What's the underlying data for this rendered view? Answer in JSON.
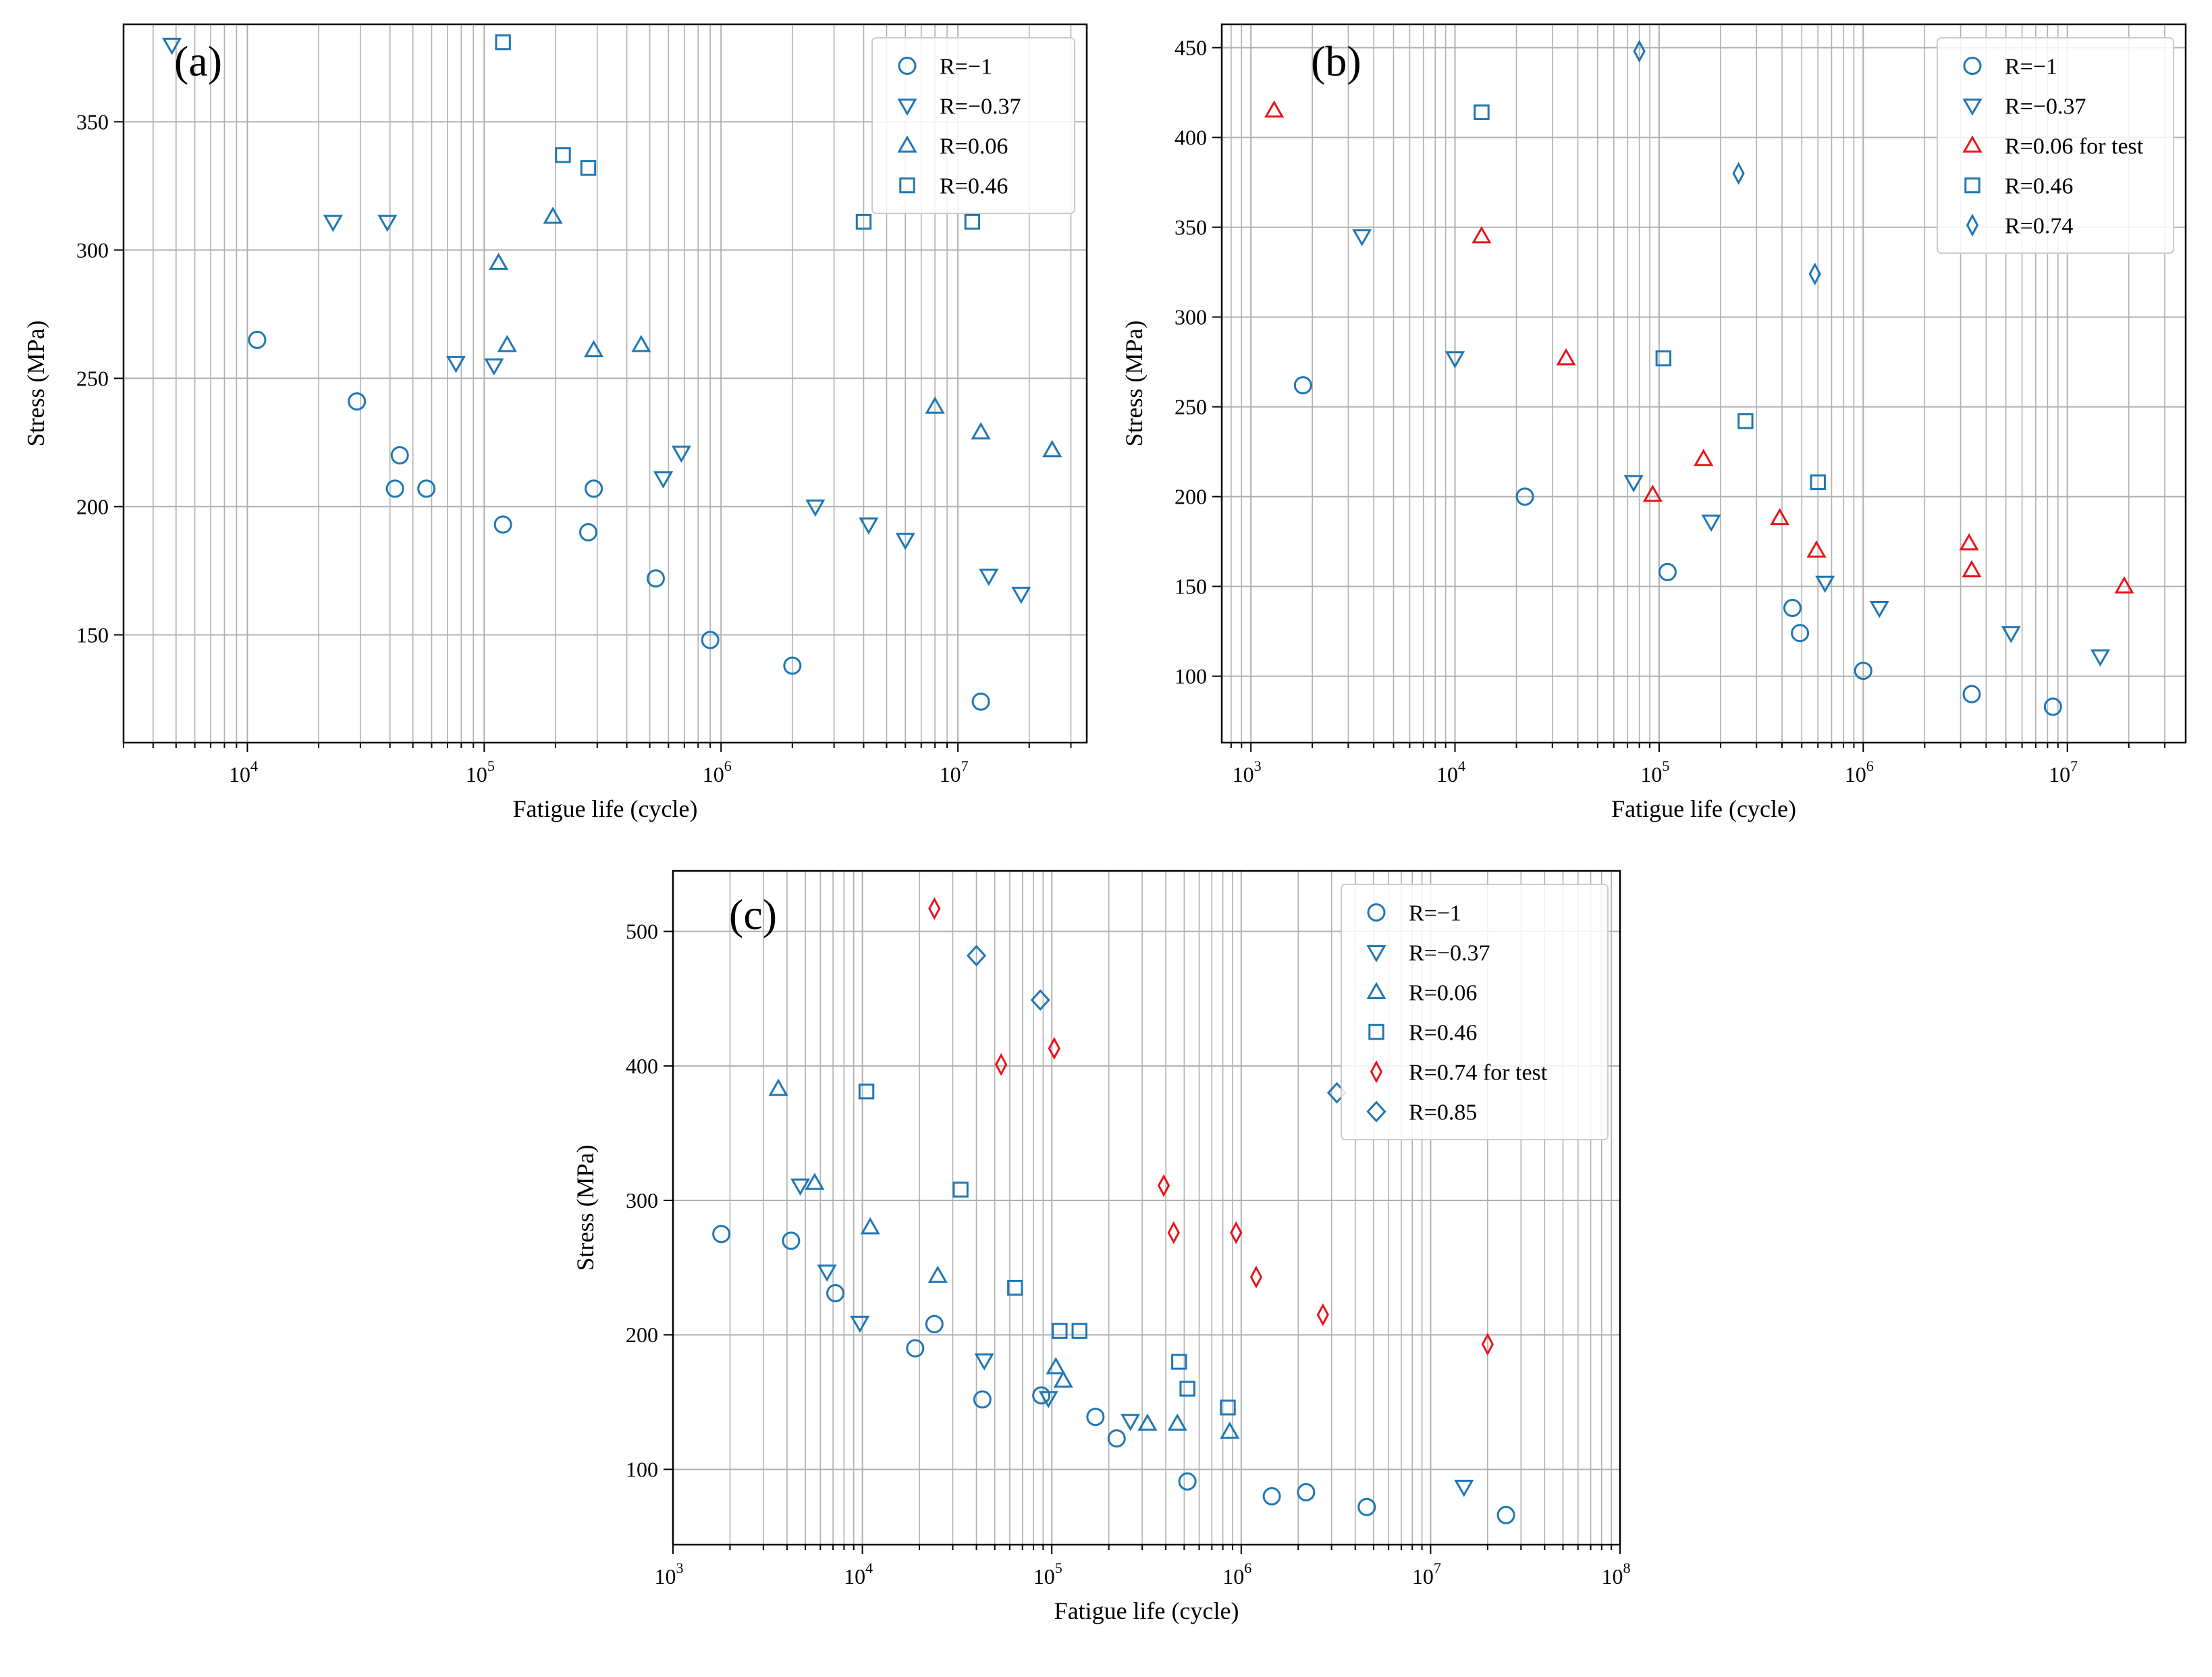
{
  "figure": {
    "colors": {
      "blue": "#1f77b4",
      "red": "#e8141b",
      "grid": "#b0b0b0",
      "axis": "#000000",
      "legend_border": "#cccccc"
    }
  },
  "chart_data": [
    {
      "type": "scatter",
      "panel": "(a)",
      "xscale": "log",
      "xlabel": "Fatigue life (cycle)",
      "ylabel": "Stress (MPa)",
      "xlim": [
        3000,
        35000000
      ],
      "ylim": [
        108,
        388
      ],
      "yticks": [
        150,
        200,
        250,
        300,
        350
      ],
      "xticks": [
        {
          "value": 10000,
          "base": "10",
          "exp": "4"
        },
        {
          "value": 100000,
          "base": "10",
          "exp": "5"
        },
        {
          "value": 1000000,
          "base": "10",
          "exp": "6"
        },
        {
          "value": 10000000,
          "base": "10",
          "exp": "7"
        }
      ],
      "grid": true,
      "legend_position": "top-right",
      "series": [
        {
          "name": "R=−1",
          "marker": "circle",
          "color": "blue",
          "points": [
            [
              11000,
              265
            ],
            [
              29000,
              241
            ],
            [
              42000,
              207
            ],
            [
              44000,
              220
            ],
            [
              57000,
              207
            ],
            [
              120000,
              193
            ],
            [
              275000,
              190
            ],
            [
              290000,
              207
            ],
            [
              530000,
              172
            ],
            [
              900000,
              148
            ],
            [
              2000000,
              138
            ],
            [
              12500000,
              124
            ]
          ]
        },
        {
          "name": "R=−0.37",
          "marker": "triangle-down",
          "color": "blue",
          "points": [
            [
              4800,
              380
            ],
            [
              23000,
              311
            ],
            [
              39000,
              311
            ],
            [
              76000,
              256
            ],
            [
              110000,
              255
            ],
            [
              570000,
              211
            ],
            [
              680000,
              221
            ],
            [
              2500000,
              200
            ],
            [
              4200000,
              193
            ],
            [
              6000000,
              187
            ],
            [
              13500000,
              173
            ],
            [
              18500000,
              166
            ]
          ]
        },
        {
          "name": "R=0.06",
          "marker": "triangle-up",
          "color": "blue",
          "points": [
            [
              115000,
              295
            ],
            [
              125000,
              263
            ],
            [
              195000,
              313
            ],
            [
              290000,
              261
            ],
            [
              460000,
              263
            ],
            [
              8000000,
              239
            ],
            [
              12500000,
              229
            ],
            [
              25000000,
              222
            ]
          ]
        },
        {
          "name": "R=0.46",
          "marker": "square",
          "color": "blue",
          "points": [
            [
              120000,
              381
            ],
            [
              215000,
              337
            ],
            [
              275000,
              332
            ],
            [
              4000000,
              311
            ],
            [
              11500000,
              311
            ]
          ]
        }
      ]
    },
    {
      "type": "scatter",
      "panel": "(b)",
      "xscale": "log",
      "xlabel": "Fatigue life (cycle)",
      "ylabel": "Stress (MPa)",
      "xlim": [
        720,
        38000000
      ],
      "ylim": [
        63,
        463
      ],
      "yticks": [
        100,
        150,
        200,
        250,
        300,
        350,
        400,
        450
      ],
      "xticks": [
        {
          "value": 1000,
          "base": "10",
          "exp": "3"
        },
        {
          "value": 10000,
          "base": "10",
          "exp": "4"
        },
        {
          "value": 100000,
          "base": "10",
          "exp": "5"
        },
        {
          "value": 1000000,
          "base": "10",
          "exp": "6"
        },
        {
          "value": 10000000,
          "base": "10",
          "exp": "7"
        }
      ],
      "grid": true,
      "legend_position": "top-right",
      "series": [
        {
          "name": "R=−1",
          "marker": "circle",
          "color": "blue",
          "points": [
            [
              1800,
              262
            ],
            [
              22000,
              200
            ],
            [
              110000,
              158
            ],
            [
              450000,
              138
            ],
            [
              490000,
              124
            ],
            [
              1000000,
              103
            ],
            [
              3400000,
              90
            ],
            [
              8500000,
              83
            ]
          ]
        },
        {
          "name": "R=−0.37",
          "marker": "triangle-down",
          "color": "blue",
          "points": [
            [
              3500,
              345
            ],
            [
              10000,
              277
            ],
            [
              75000,
              208
            ],
            [
              180000,
              186
            ],
            [
              650000,
              152
            ],
            [
              1200000,
              138
            ],
            [
              5300000,
              124
            ],
            [
              14500000,
              111
            ]
          ]
        },
        {
          "name": "R=0.06 for test",
          "marker": "triangle-up",
          "color": "red",
          "points": [
            [
              1300,
              415
            ],
            [
              13500,
              345
            ],
            [
              35000,
              277
            ],
            [
              93000,
              201
            ],
            [
              165000,
              221
            ],
            [
              390000,
              188
            ],
            [
              590000,
              170
            ],
            [
              3300000,
              174
            ],
            [
              3400000,
              159
            ],
            [
              19000000,
              150
            ]
          ]
        },
        {
          "name": "R=0.46",
          "marker": "square",
          "color": "blue",
          "points": [
            [
              13500,
              414
            ],
            [
              105000,
              277
            ],
            [
              265000,
              242
            ],
            [
              600000,
              208
            ]
          ]
        },
        {
          "name": "R=0.74",
          "marker": "thin-diamond",
          "color": "blue",
          "points": [
            [
              80000,
              448
            ],
            [
              245000,
              380
            ],
            [
              580000,
              324
            ]
          ]
        }
      ]
    },
    {
      "type": "scatter",
      "panel": "(c)",
      "xscale": "log",
      "xlabel": "Fatigue life (cycle)",
      "ylabel": "Stress (MPa)",
      "xlim": [
        1000,
        100000000
      ],
      "ylim": [
        44,
        545
      ],
      "yticks": [
        100,
        200,
        300,
        400,
        500
      ],
      "xticks": [
        {
          "value": 1000,
          "base": "10",
          "exp": "3"
        },
        {
          "value": 10000,
          "base": "10",
          "exp": "4"
        },
        {
          "value": 100000,
          "base": "10",
          "exp": "5"
        },
        {
          "value": 1000000,
          "base": "10",
          "exp": "6"
        },
        {
          "value": 10000000,
          "base": "10",
          "exp": "7"
        },
        {
          "value": 100000000,
          "base": "10",
          "exp": "8"
        }
      ],
      "grid": true,
      "legend_position": "top-right",
      "series": [
        {
          "name": "R=−1",
          "marker": "circle",
          "color": "blue",
          "points": [
            [
              1800,
              275
            ],
            [
              4200,
              270
            ],
            [
              7200,
              231
            ],
            [
              19000,
              190
            ],
            [
              24000,
              208
            ],
            [
              43000,
              152
            ],
            [
              88000,
              155
            ],
            [
              170000,
              139
            ],
            [
              220000,
              123
            ],
            [
              520000,
              91
            ],
            [
              1450000,
              80
            ],
            [
              2200000,
              83
            ],
            [
              4600000,
              72
            ],
            [
              25000000,
              66
            ]
          ]
        },
        {
          "name": "R=−0.37",
          "marker": "triangle-down",
          "color": "blue",
          "points": [
            [
              4700,
              311
            ],
            [
              6500,
              247
            ],
            [
              9700,
              209
            ],
            [
              44000,
              181
            ],
            [
              96000,
              153
            ],
            [
              260000,
              136
            ],
            [
              15000000,
              87
            ]
          ]
        },
        {
          "name": "R=0.06",
          "marker": "triangle-up",
          "color": "blue",
          "points": [
            [
              3600,
              383
            ],
            [
              5600,
              313
            ],
            [
              11000,
              280
            ],
            [
              25000,
              244
            ],
            [
              105000,
              176
            ],
            [
              115000,
              166
            ],
            [
              320000,
              134
            ],
            [
              460000,
              134
            ],
            [
              870000,
              128
            ]
          ]
        },
        {
          "name": "R=0.46",
          "marker": "square",
          "color": "blue",
          "points": [
            [
              10500,
              381
            ],
            [
              33000,
              308
            ],
            [
              64000,
              235
            ],
            [
              110000,
              203
            ],
            [
              140000,
              203
            ],
            [
              470000,
              180
            ],
            [
              520000,
              160
            ],
            [
              850000,
              146
            ]
          ]
        },
        {
          "name": "R=0.74 for test",
          "marker": "thin-diamond",
          "color": "red",
          "points": [
            [
              24000,
              517
            ],
            [
              54000,
              401
            ],
            [
              103000,
              413
            ],
            [
              390000,
              311
            ],
            [
              440000,
              276
            ],
            [
              940000,
              276
            ],
            [
              1200000,
              243
            ],
            [
              2700000,
              215
            ],
            [
              20000000,
              193
            ]
          ]
        },
        {
          "name": "R=0.85",
          "marker": "diamond",
          "color": "blue",
          "points": [
            [
              40000,
              482
            ],
            [
              87000,
              449
            ],
            [
              3200000,
              380
            ]
          ]
        }
      ]
    }
  ]
}
